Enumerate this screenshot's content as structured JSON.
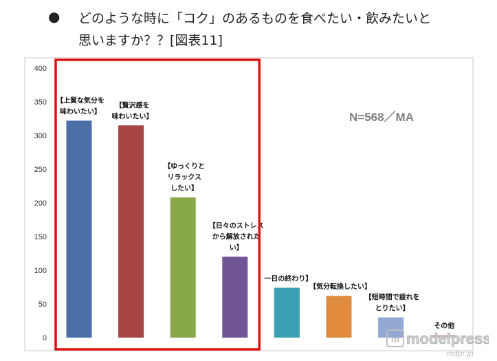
{
  "header": {
    "bullet": "●",
    "title_line1": "どのような時に「コク」のあるものを食べたい・飲みたいと",
    "title_line2": "思いますか？？[図表11]"
  },
  "chart_data": {
    "type": "bar",
    "categories": [
      "【上質な気分を\n味わいたい】",
      "【贅沢感を\n味わいたい】",
      "【ゆっくりと\nリラックス\nしたい】",
      "【日々のストレス\nから解放された\nい】",
      "一日の終わり】",
      "【気分転換したい】",
      "【短時間で疲れを\nとりたい】",
      "その他"
    ],
    "values": [
      322,
      315,
      208,
      120,
      74,
      62,
      30,
      4
    ],
    "colors": [
      "#4a6fa6",
      "#a84444",
      "#88a84a",
      "#725596",
      "#3ea0b5",
      "#e08b3e",
      "#93a9d4",
      "#e0b9b9"
    ],
    "ylim": [
      0,
      400
    ],
    "yticks": [
      0,
      50,
      100,
      150,
      200,
      250,
      300,
      350,
      400
    ],
    "annotation": "N=568／MA",
    "grid": false,
    "highlight_range": [
      0,
      3
    ],
    "highlight_color": "#e01010"
  },
  "watermark": {
    "text": "modelpress",
    "subtext": "mdpr.jp"
  }
}
